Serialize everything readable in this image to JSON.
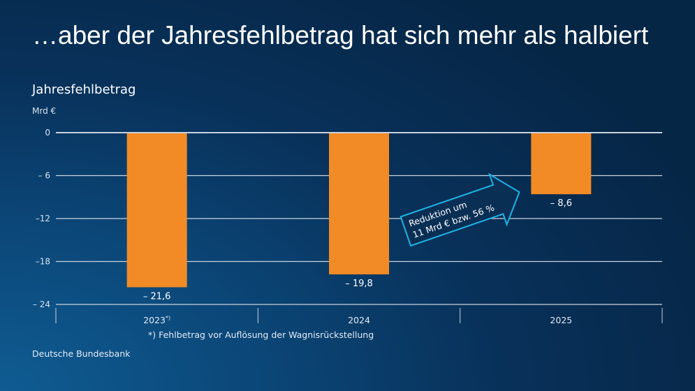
{
  "headline": "…aber der Jahresfehlbetrag hat sich mehr als halbiert",
  "footnote": "*) Fehlbetrag vor Auflösung der Wagnisrückstellung",
  "source": "Deutsche Bundesbank",
  "chart_data": {
    "type": "bar",
    "title": "Jahresfehlbetrag",
    "ylabel": "Mrd €",
    "categories": [
      "2023",
      "2024",
      "2025"
    ],
    "category_notes": [
      "*)",
      "",
      ""
    ],
    "values": [
      -21.6,
      -19.8,
      -8.6
    ],
    "data_labels": [
      "– 21,6",
      "– 19,8",
      "– 8,6"
    ],
    "ylim": [
      -24,
      0
    ],
    "yticks": [
      0,
      -6,
      -12,
      -18,
      -24
    ],
    "ytick_labels": [
      "0",
      "– 6",
      "–12",
      "–18",
      "– 24"
    ],
    "grid": true,
    "annotation": {
      "lines": [
        "Reduktion um",
        "11 Mrd € bzw. 56 %"
      ]
    },
    "colors": {
      "bar": "#f28b25",
      "grid": "#c9d3de",
      "arrow": "#1fb3e6"
    }
  }
}
